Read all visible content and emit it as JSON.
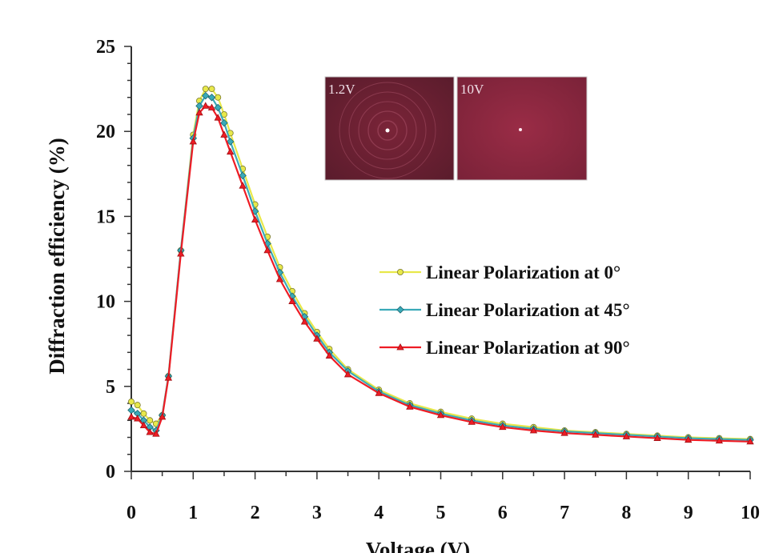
{
  "chart_data": {
    "type": "line",
    "title": "",
    "xlabel": "Voltage (V)",
    "ylabel": "Diffraction efficiency (%)",
    "xlim": [
      0,
      10
    ],
    "ylim": [
      0,
      25
    ],
    "xticks": [
      "0",
      "1",
      "2",
      "3",
      "4",
      "5",
      "6",
      "7",
      "8",
      "9",
      "10"
    ],
    "yticks": [
      "0",
      "5",
      "10",
      "15",
      "20",
      "25"
    ],
    "grid": false,
    "legend_position": "right",
    "x": [
      0,
      0.1,
      0.2,
      0.3,
      0.4,
      0.5,
      0.6,
      0.8,
      1.0,
      1.1,
      1.2,
      1.3,
      1.4,
      1.5,
      1.6,
      1.8,
      2.0,
      2.2,
      2.4,
      2.6,
      2.8,
      3.0,
      3.2,
      3.5,
      4.0,
      4.5,
      5.0,
      5.5,
      6.0,
      6.5,
      7.0,
      7.5,
      8.0,
      8.5,
      9.0,
      9.5,
      10.0
    ],
    "series": [
      {
        "name": "Linear Polarization at 0°",
        "color": "#e8e84a",
        "marker": "circle",
        "values": [
          4.1,
          3.9,
          3.4,
          3.0,
          2.8,
          3.3,
          5.6,
          13.0,
          19.8,
          21.8,
          22.5,
          22.5,
          22.0,
          21.0,
          19.9,
          17.8,
          15.7,
          13.8,
          12.0,
          10.6,
          9.3,
          8.2,
          7.2,
          6.0,
          4.8,
          4.0,
          3.5,
          3.1,
          2.8,
          2.6,
          2.4,
          2.3,
          2.2,
          2.1,
          2.0,
          1.95,
          1.9
        ]
      },
      {
        "name": "Linear Polarization at 45°",
        "color": "#3aaab8",
        "marker": "diamond",
        "values": [
          3.6,
          3.4,
          3.0,
          2.6,
          2.4,
          3.3,
          5.6,
          13.0,
          19.6,
          21.5,
          22.1,
          22.0,
          21.4,
          20.5,
          19.4,
          17.4,
          15.3,
          13.4,
          11.7,
          10.3,
          9.1,
          8.0,
          7.0,
          5.9,
          4.7,
          3.9,
          3.4,
          3.0,
          2.7,
          2.5,
          2.35,
          2.25,
          2.15,
          2.05,
          1.95,
          1.9,
          1.85
        ]
      },
      {
        "name": "Linear Polarization at 90°",
        "color": "#ee1c24",
        "marker": "triangle",
        "values": [
          3.2,
          3.1,
          2.7,
          2.3,
          2.2,
          3.2,
          5.5,
          12.8,
          19.4,
          21.1,
          21.5,
          21.4,
          20.8,
          19.8,
          18.8,
          16.8,
          14.8,
          13.0,
          11.3,
          10.0,
          8.8,
          7.8,
          6.8,
          5.7,
          4.6,
          3.8,
          3.3,
          2.9,
          2.6,
          2.4,
          2.25,
          2.15,
          2.05,
          1.95,
          1.85,
          1.8,
          1.75
        ]
      }
    ],
    "insets": [
      {
        "label": "1.2V"
      },
      {
        "label": "10V"
      }
    ]
  }
}
